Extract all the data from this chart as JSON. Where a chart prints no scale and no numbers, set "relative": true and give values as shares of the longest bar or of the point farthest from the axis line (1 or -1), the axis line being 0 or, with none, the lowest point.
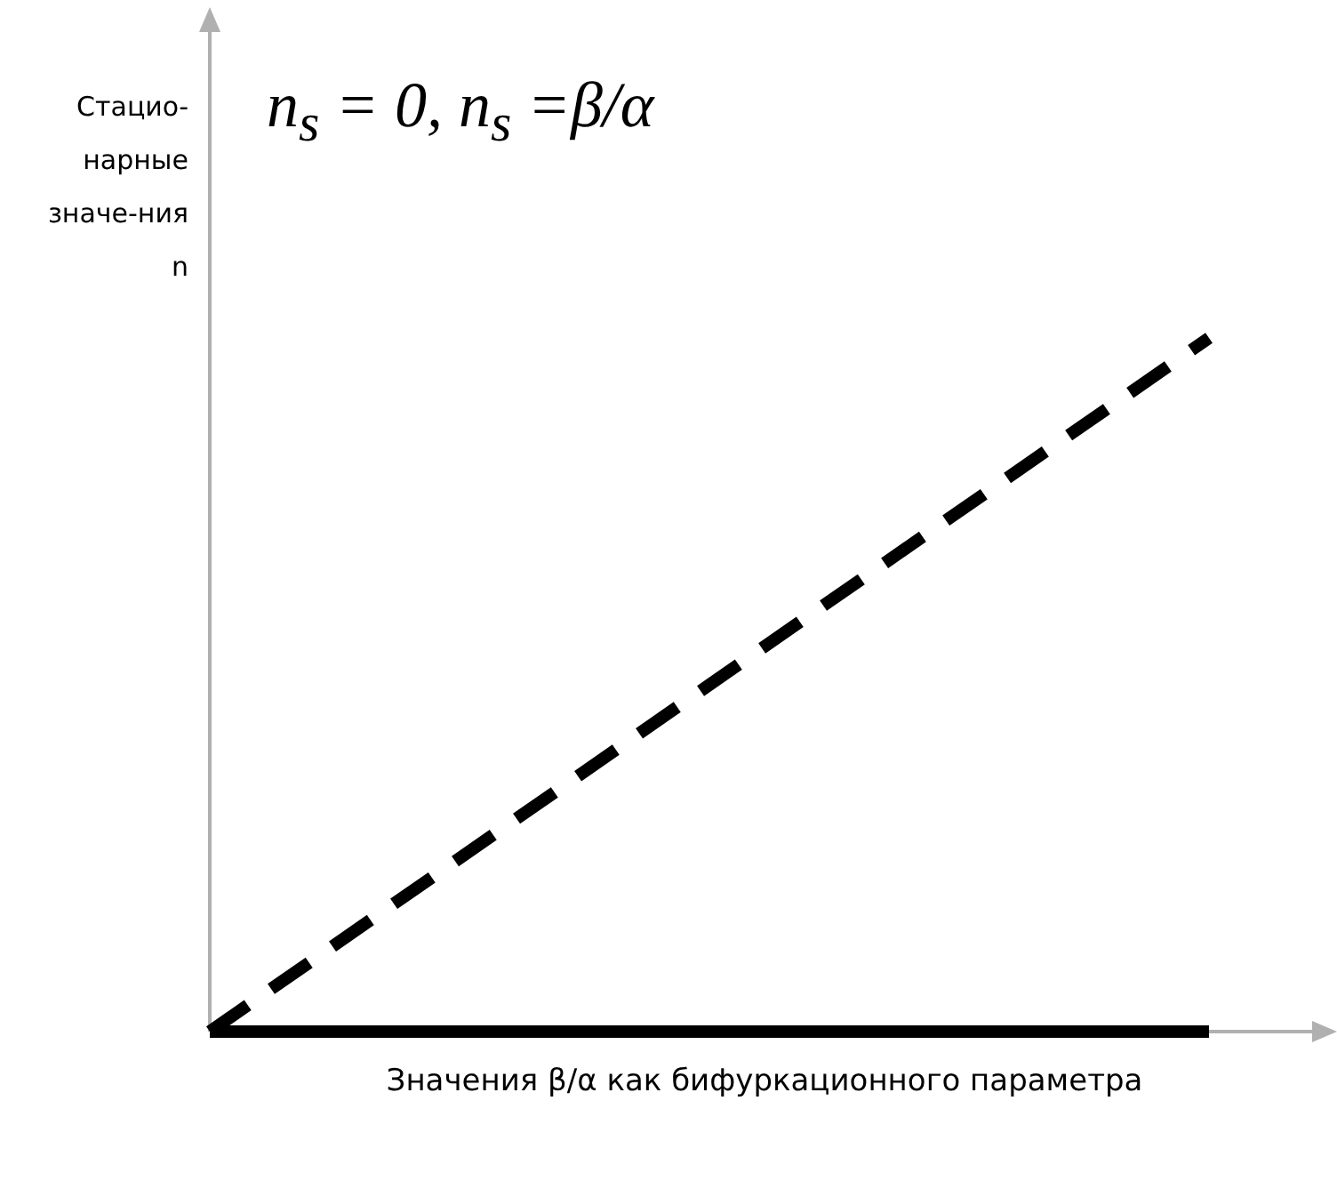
{
  "chart_data": {
    "type": "line",
    "relative": true,
    "title": "n$_{s}$ = 0, n$_{s}$ =β/α",
    "ylabel": "Стацио-нарные значе-ния n",
    "xlabel": "Значения β/α как бифуркационного параметра",
    "categories": [
      null,
      null
    ],
    "legend": false,
    "series": [
      {
        "color": "#000000",
        "values": [
          0,
          0
        ],
        "line_style": "solid"
      },
      {
        "color": "#000000",
        "values": [
          0,
          1
        ],
        "line_style": "dashed"
      }
    ]
  }
}
